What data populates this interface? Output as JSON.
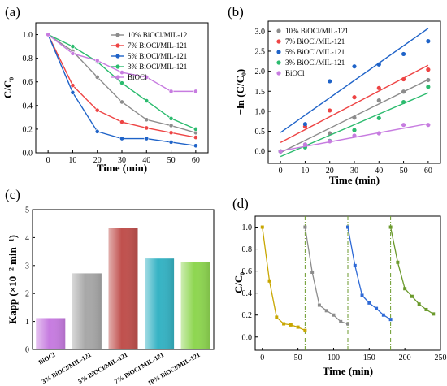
{
  "chart_data": [
    {
      "id": "a",
      "panel_label": "(a)",
      "type": "line",
      "xlabel": "Time (min)",
      "ylabel": "C/C₀",
      "xlim": [
        -5,
        65
      ],
      "ylim": [
        0,
        1.1
      ],
      "xticks": [
        0,
        10,
        20,
        30,
        40,
        50,
        60
      ],
      "yticks": [
        0.0,
        0.2,
        0.4,
        0.6,
        0.8,
        1.0
      ],
      "legend_position": "top-right",
      "x": [
        0,
        10,
        20,
        30,
        40,
        50,
        60
      ],
      "series": [
        {
          "name": "10% BiOCl/MIL-121",
          "color": "#8c8c8c",
          "values": [
            1.0,
            0.86,
            0.64,
            0.43,
            0.28,
            0.23,
            0.17
          ]
        },
        {
          "name": "7%  BiOCl/MIL-121",
          "color": "#ee4444",
          "values": [
            1.0,
            0.57,
            0.36,
            0.26,
            0.21,
            0.17,
            0.13
          ]
        },
        {
          "name": "5%  BiOCl/MIL-121",
          "color": "#1f63c8",
          "values": [
            1.0,
            0.51,
            0.18,
            0.12,
            0.12,
            0.09,
            0.06
          ]
        },
        {
          "name": "3%  BiOCl/MIL-121",
          "color": "#2bbb6e",
          "values": [
            1.0,
            0.9,
            0.77,
            0.59,
            0.44,
            0.29,
            0.2
          ]
        },
        {
          "name": "BiOCl",
          "color": "#c77ce0",
          "values": [
            1.0,
            0.84,
            0.78,
            0.68,
            0.64,
            0.52,
            0.52
          ]
        }
      ]
    },
    {
      "id": "b",
      "panel_label": "(b)",
      "type": "scatter",
      "xlabel": "Time (min)",
      "ylabel": "−ln (C/C₀)",
      "xlim": [
        -5,
        65
      ],
      "ylim": [
        -0.3,
        3.25
      ],
      "xticks": [
        0,
        10,
        20,
        30,
        40,
        50,
        60
      ],
      "yticks": [
        0.0,
        0.5,
        1.0,
        1.5,
        2.0,
        2.5,
        3.0
      ],
      "legend_position": "top-left",
      "x": [
        0,
        10,
        20,
        30,
        40,
        50,
        60
      ],
      "series": [
        {
          "name": "10% BiOCl/MIL-121",
          "color": "#8c8c8c",
          "values": [
            0.0,
            0.17,
            0.45,
            0.84,
            1.27,
            1.49,
            1.78
          ],
          "fit": [
            -0.03,
            1.79
          ]
        },
        {
          "name": "7%  BiOCl/MIL-121",
          "color": "#ee4444",
          "values": [
            0.0,
            0.62,
            1.02,
            1.35,
            1.58,
            1.8,
            2.04
          ],
          "fit": [
            0.22,
            2.15
          ]
        },
        {
          "name": "5%  BiOCl/MIL-121",
          "color": "#1f63c8",
          "values": [
            0.0,
            0.68,
            1.75,
            2.12,
            2.17,
            2.43,
            2.75
          ],
          "fit": [
            0.47,
            3.07
          ]
        },
        {
          "name": "3%  BiOCl/MIL-121",
          "color": "#2bbb6e",
          "values": [
            0.0,
            0.1,
            0.26,
            0.53,
            0.83,
            1.23,
            1.61
          ],
          "fit": [
            -0.13,
            1.46
          ]
        },
        {
          "name": "BiOCl",
          "color": "#c77ce0",
          "values": [
            0.0,
            0.17,
            0.25,
            0.39,
            0.45,
            0.66,
            0.66
          ],
          "fit": [
            0.01,
            0.69
          ]
        }
      ]
    },
    {
      "id": "c",
      "panel_label": "(c)",
      "type": "bar",
      "xlabel": "",
      "ylabel": "Kapp (×10⁻² min⁻¹)",
      "ylim": [
        0,
        5
      ],
      "yticks": [
        0,
        1,
        2,
        3,
        4,
        5
      ],
      "categories": [
        "BiOCl",
        "3% BiOCl/MIL-121",
        "5% BiOCl/MIL-121",
        "7% BiOCl/MIL-121",
        "10% BiOCl/MIL-121"
      ],
      "values": [
        1.12,
        2.72,
        4.35,
        3.25,
        3.12
      ],
      "colors": [
        "#c77ce0",
        "#a8a8a8",
        "#c0504d",
        "#36b3c4",
        "#8ed651"
      ]
    },
    {
      "id": "d",
      "panel_label": "(d)",
      "type": "line",
      "xlabel": "Time (min)",
      "ylabel": "C/C₀",
      "xlim": [
        -10,
        250
      ],
      "ylim": [
        -0.12,
        1.1
      ],
      "xticks": [
        0,
        50,
        100,
        150,
        200,
        250
      ],
      "yticks": [
        0.0,
        0.2,
        0.4,
        0.6,
        0.8,
        1.0
      ],
      "cycle_boundaries": [
        60,
        120,
        180
      ],
      "series": [
        {
          "name": "",
          "color": "#c8a600",
          "x": [
            0,
            10,
            20,
            30,
            40,
            50,
            60
          ],
          "values": [
            1.0,
            0.51,
            0.18,
            0.12,
            0.11,
            0.09,
            0.06
          ]
        },
        {
          "name": "",
          "color": "#8c8c8c",
          "x": [
            60,
            70,
            80,
            90,
            100,
            110,
            120
          ],
          "values": [
            1.0,
            0.59,
            0.29,
            0.24,
            0.2,
            0.14,
            0.12
          ]
        },
        {
          "name": "",
          "color": "#2f6ad6",
          "x": [
            120,
            130,
            140,
            150,
            160,
            170,
            180
          ],
          "values": [
            1.0,
            0.65,
            0.38,
            0.31,
            0.26,
            0.2,
            0.16
          ]
        },
        {
          "name": "",
          "color": "#6b9a2c",
          "x": [
            180,
            190,
            200,
            210,
            220,
            230,
            240
          ],
          "values": [
            1.0,
            0.68,
            0.44,
            0.37,
            0.3,
            0.25,
            0.21
          ]
        }
      ]
    }
  ]
}
